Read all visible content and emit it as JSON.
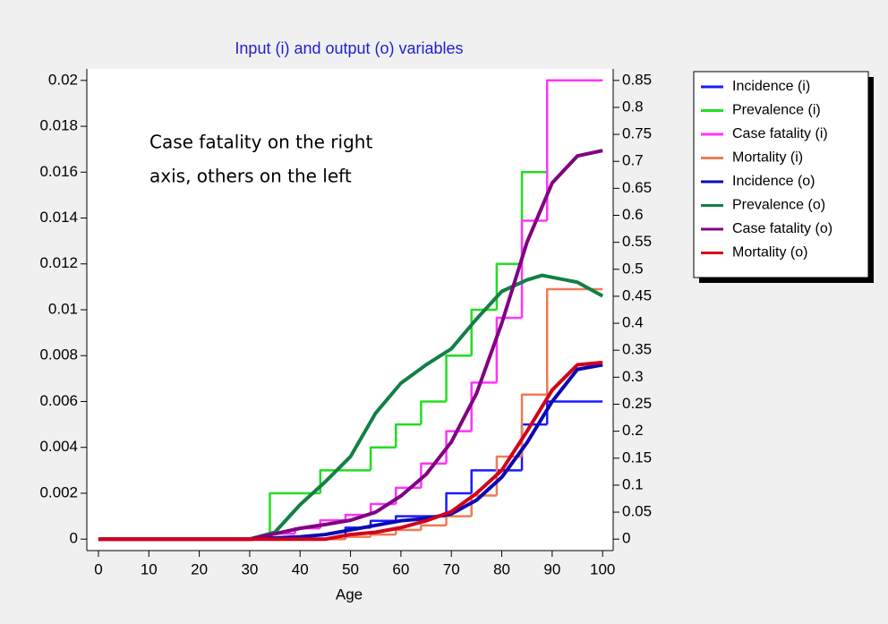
{
  "chart_data": {
    "type": "line",
    "title": "Input (i) and output (o) variables",
    "xlabel": "Age",
    "annotation": [
      "Case fatality on the right",
      "axis, others on the left"
    ],
    "xlim": [
      -2.3,
      102.1
    ],
    "xticks": [
      0,
      10,
      20,
      30,
      40,
      50,
      60,
      70,
      80,
      90,
      100
    ],
    "ylim": [
      -0.0005,
      0.0205
    ],
    "yticks": [
      0,
      0.002,
      0.004,
      0.006,
      0.008,
      0.01,
      0.012,
      0.014,
      0.016,
      0.018,
      0.02
    ],
    "y2lim": [
      -0.02125,
      0.87125
    ],
    "y2ticks": [
      0,
      0.05,
      0.1,
      0.15,
      0.2,
      0.25,
      0.3,
      0.35,
      0.4,
      0.45,
      0.5,
      0.55,
      0.6,
      0.65,
      0.7,
      0.75,
      0.8,
      0.85
    ],
    "legend": "outside-right",
    "series": [
      {
        "name": "Incidence (i)",
        "color": "#1a1aff",
        "width": 2.5,
        "step": true,
        "x": [
          0,
          29,
          34,
          39,
          44,
          49,
          54,
          59,
          64,
          69,
          74,
          79,
          84,
          89,
          100
        ],
        "values": [
          0,
          0,
          0,
          0,
          0,
          0.0005,
          0.0008,
          0.001,
          0.001,
          0.002,
          0.003,
          0.003,
          0.005,
          0.006,
          0.006
        ]
      },
      {
        "name": "Prevalence (i)",
        "color": "#22dd22",
        "width": 2.5,
        "step": true,
        "x": [
          0,
          29,
          34,
          39,
          44,
          49,
          54,
          59,
          64,
          69,
          74,
          79,
          84,
          89,
          100
        ],
        "values": [
          0,
          0,
          0.002,
          0.002,
          0.003,
          0.003,
          0.004,
          0.005,
          0.006,
          0.008,
          0.01,
          0.012,
          0.016,
          0.02,
          0.02
        ]
      },
      {
        "name": "Case fatality (i)",
        "color": "#ff33ff",
        "width": 2.5,
        "step": true,
        "axis": "y2",
        "x": [
          0,
          29,
          34,
          39,
          44,
          49,
          54,
          59,
          64,
          69,
          74,
          79,
          84,
          89,
          100
        ],
        "values": [
          0,
          0,
          0.01,
          0.02,
          0.035,
          0.045,
          0.065,
          0.095,
          0.14,
          0.2,
          0.29,
          0.41,
          0.59,
          0.85,
          0.85
        ]
      },
      {
        "name": "Mortality (i)",
        "color": "#f07a55",
        "width": 2.5,
        "step": true,
        "x": [
          0,
          29,
          34,
          39,
          44,
          49,
          54,
          59,
          64,
          69,
          74,
          79,
          84,
          89,
          100
        ],
        "values": [
          0,
          0,
          0,
          0,
          0,
          0.0001,
          0.0002,
          0.0004,
          0.0006,
          0.001,
          0.0019,
          0.0036,
          0.0063,
          0.0109,
          0.0109
        ]
      },
      {
        "name": "Incidence (o)",
        "color": "#0a0ab4",
        "width": 4,
        "x": [
          0,
          30,
          40,
          45,
          50,
          55,
          60,
          65,
          70,
          75,
          80,
          85,
          90,
          95,
          100
        ],
        "values": [
          0,
          0,
          0.0001,
          0.0002,
          0.0004,
          0.0006,
          0.0008,
          0.0009,
          0.0011,
          0.0017,
          0.0027,
          0.0042,
          0.006,
          0.0074,
          0.0076
        ]
      },
      {
        "name": "Prevalence (o)",
        "color": "#128045",
        "width": 4,
        "x": [
          0,
          30,
          35,
          40,
          45,
          50,
          55,
          60,
          65,
          70,
          75,
          80,
          85,
          88,
          95,
          100
        ],
        "values": [
          0,
          0,
          0.0003,
          0.0015,
          0.0025,
          0.0036,
          0.0055,
          0.0068,
          0.0076,
          0.0083,
          0.0096,
          0.0108,
          0.0113,
          0.0115,
          0.0112,
          0.0106
        ]
      },
      {
        "name": "Case fatality (o)",
        "color": "#800080",
        "width": 4,
        "axis": "y2",
        "x": [
          0,
          30,
          35,
          40,
          45,
          50,
          55,
          60,
          65,
          70,
          75,
          80,
          85,
          90,
          95,
          100
        ],
        "values": [
          0,
          0,
          0.01,
          0.02,
          0.027,
          0.035,
          0.05,
          0.08,
          0.12,
          0.18,
          0.27,
          0.4,
          0.55,
          0.66,
          0.71,
          0.72
        ]
      },
      {
        "name": "Mortality (o)",
        "color": "#d4001a",
        "width": 4,
        "x": [
          0,
          45,
          50,
          55,
          60,
          65,
          70,
          75,
          80,
          85,
          90,
          95,
          100
        ],
        "values": [
          0,
          0,
          0.0002,
          0.0003,
          0.0005,
          0.0008,
          0.0012,
          0.002,
          0.003,
          0.0047,
          0.0065,
          0.0076,
          0.0077
        ]
      }
    ]
  }
}
